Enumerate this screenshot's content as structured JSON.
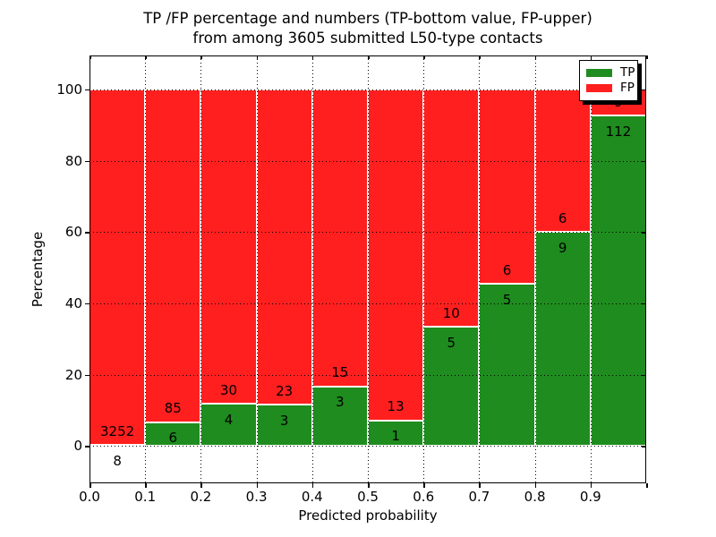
{
  "chart_data": {
    "type": "bar",
    "variant": "stacked-percentage",
    "title_line1": "TP /FP percentage and numbers (TP-bottom value, FP-upper)",
    "title_line2": "from among 3605 submitted L50-type contacts",
    "xlabel": "Predicted probability",
    "ylabel": "Percentage",
    "total_contacts": 3605,
    "xlim": [
      0.0,
      1.0
    ],
    "ylim": [
      -10.5,
      109.5
    ],
    "x_tick_labels": [
      "0.0",
      "0.1",
      "0.2",
      "0.3",
      "0.4",
      "0.5",
      "0.6",
      "0.7",
      "0.8",
      "0.9"
    ],
    "y_ticks": [
      0,
      20,
      40,
      60,
      80,
      100
    ],
    "y_tick_labels": [
      "0",
      "20",
      "40",
      "60",
      "80",
      "100"
    ],
    "grid": "dotted, drawn above bars, vertical every 0.1 and horizontal every 20",
    "legend": {
      "position": "upper-right",
      "entries": [
        {
          "label": "TP",
          "color": "#1e8c1e"
        },
        {
          "label": "FP",
          "color": "#ff1f1f"
        }
      ]
    },
    "colors": {
      "tp": "#1e8c1e",
      "fp": "#ff1f1f",
      "bar_edge": "#ffffff"
    },
    "bins": [
      {
        "range": [
          0.0,
          0.1
        ],
        "tp": 8,
        "fp": 3252,
        "tp_pct": 0.25
      },
      {
        "range": [
          0.1,
          0.2
        ],
        "tp": 6,
        "fp": 85,
        "tp_pct": 6.59
      },
      {
        "range": [
          0.2,
          0.3
        ],
        "tp": 4,
        "fp": 30,
        "tp_pct": 11.76
      },
      {
        "range": [
          0.3,
          0.4
        ],
        "tp": 3,
        "fp": 23,
        "tp_pct": 11.54
      },
      {
        "range": [
          0.4,
          0.5
        ],
        "tp": 3,
        "fp": 15,
        "tp_pct": 16.67
      },
      {
        "range": [
          0.5,
          0.6
        ],
        "tp": 1,
        "fp": 13,
        "tp_pct": 7.14
      },
      {
        "range": [
          0.6,
          0.7
        ],
        "tp": 5,
        "fp": 10,
        "tp_pct": 33.33
      },
      {
        "range": [
          0.7,
          0.8
        ],
        "tp": 5,
        "fp": 6,
        "tp_pct": 45.45
      },
      {
        "range": [
          0.8,
          0.9
        ],
        "tp": 9,
        "fp": 6,
        "tp_pct": 60.0
      },
      {
        "range": [
          0.9,
          1.0
        ],
        "tp": 112,
        "fp": 9,
        "tp_pct": 92.56
      }
    ]
  }
}
